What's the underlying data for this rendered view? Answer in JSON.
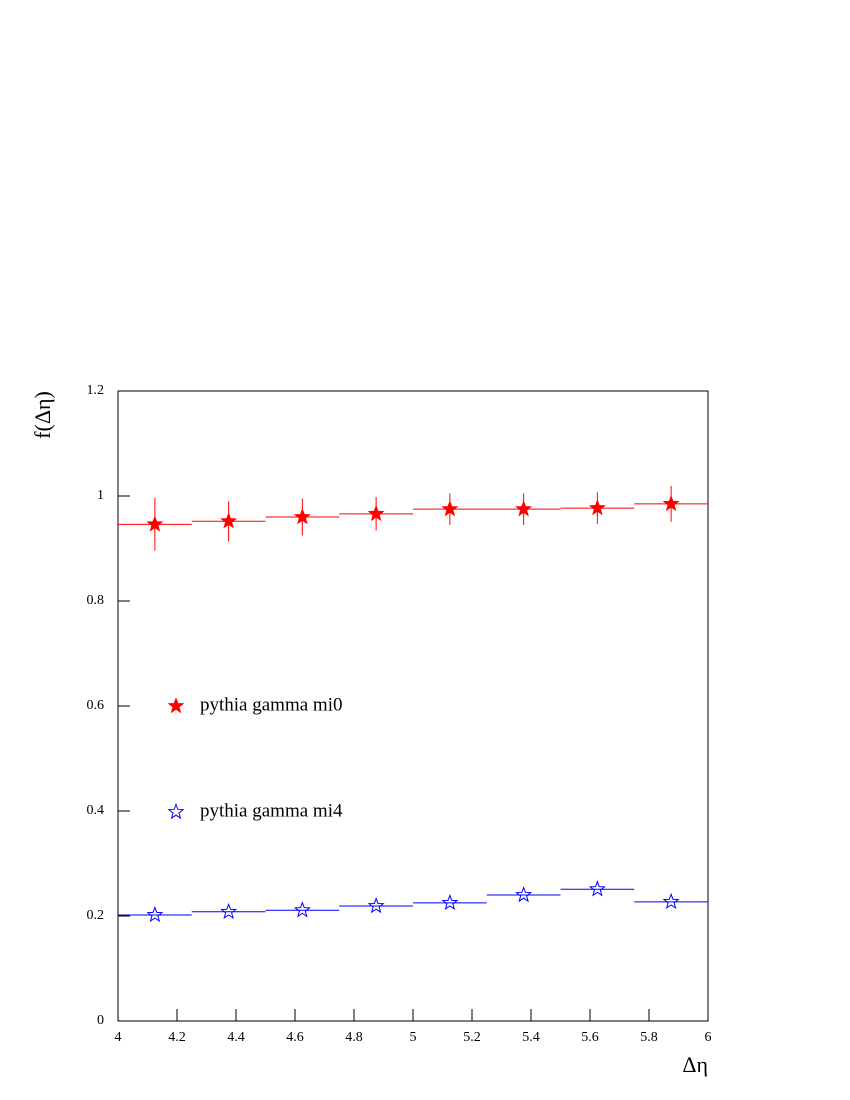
{
  "chart_data": {
    "type": "histogram",
    "x_label": "Δη",
    "y_label": "f(Δη)",
    "bins": [
      4,
      4.25,
      4.5,
      4.75,
      5,
      5.25,
      5.5,
      5.75,
      6
    ],
    "series": [
      {
        "name": "pythia gamma mi0",
        "color": "#ff0000",
        "marker": "filled-star",
        "values": [
          0.946,
          0.952,
          0.96,
          0.966,
          0.975,
          0.975,
          0.977,
          0.985
        ],
        "errors": [
          0.05,
          0.038,
          0.035,
          0.032,
          0.03,
          0.03,
          0.03,
          0.034
        ]
      },
      {
        "name": "pythia gamma mi4",
        "color": "#0000ff",
        "marker": "open-star",
        "values": [
          0.202,
          0.208,
          0.211,
          0.219,
          0.225,
          0.24,
          0.251,
          0.227
        ]
      }
    ],
    "xlim": [
      4,
      6
    ],
    "xticks": [
      4,
      4.2,
      4.4,
      4.6,
      4.8,
      5,
      5.2,
      5.4,
      5.6,
      5.8,
      6
    ],
    "ylim": [
      0,
      1.2
    ],
    "yticks": [
      0,
      0.2,
      0.4,
      0.6,
      0.8,
      1,
      1.2
    ]
  }
}
